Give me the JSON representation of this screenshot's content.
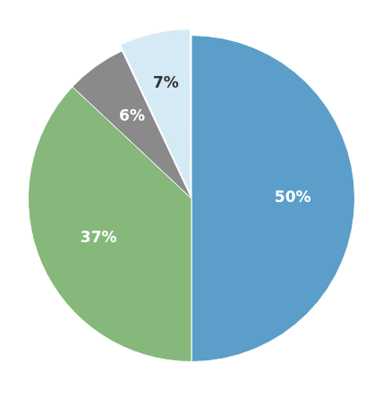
{
  "chart_data": {
    "type": "pie",
    "values": [
      50,
      37,
      6,
      7
    ],
    "value_labels": [
      "50%",
      "37%",
      "6%",
      "7%"
    ],
    "data_labels": true,
    "colors": [
      "#5a9ec9",
      "#85b87a",
      "#8a8a8a",
      "#d6eaf5"
    ]
  }
}
